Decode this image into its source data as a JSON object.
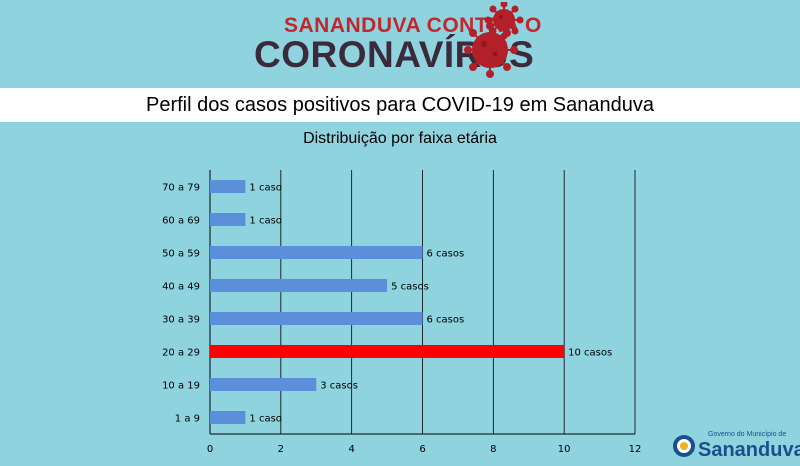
{
  "header": {
    "logo_line1": "SANANDUVA CONTRA O",
    "logo_line2": "CORONAVÍRUS",
    "banner_title": "Perfil dos casos positivos para COVID-19 em Sananduva"
  },
  "footer": {
    "small_text": "Governo do Município de",
    "big_text": "Sananduva"
  },
  "colors": {
    "bar": "#5b8fd9",
    "highlight": "#ff0000",
    "background": "#8fd3df",
    "brand_red": "#c0282f"
  },
  "chart_data": {
    "type": "bar",
    "orientation": "horizontal",
    "title": "Distribuição por faixa etária",
    "categories": [
      "70 a 79",
      "60 a 69",
      "50 a 59",
      "40 a 49",
      "30 a 39",
      "20 a 29",
      "10 a 19",
      "1 a 9"
    ],
    "values": [
      1,
      1,
      6,
      5,
      6,
      10,
      3,
      1
    ],
    "data_labels": [
      "1 caso",
      "1 caso",
      "6 casos",
      "5 casos",
      "6 casos",
      "10 casos",
      "3 casos",
      "1 caso"
    ],
    "highlight": [
      "20 a 29"
    ],
    "xlim": [
      0,
      12
    ],
    "xticks": [
      "0",
      "2",
      "4",
      "6",
      "8",
      "10",
      "12"
    ],
    "grid": true
  }
}
